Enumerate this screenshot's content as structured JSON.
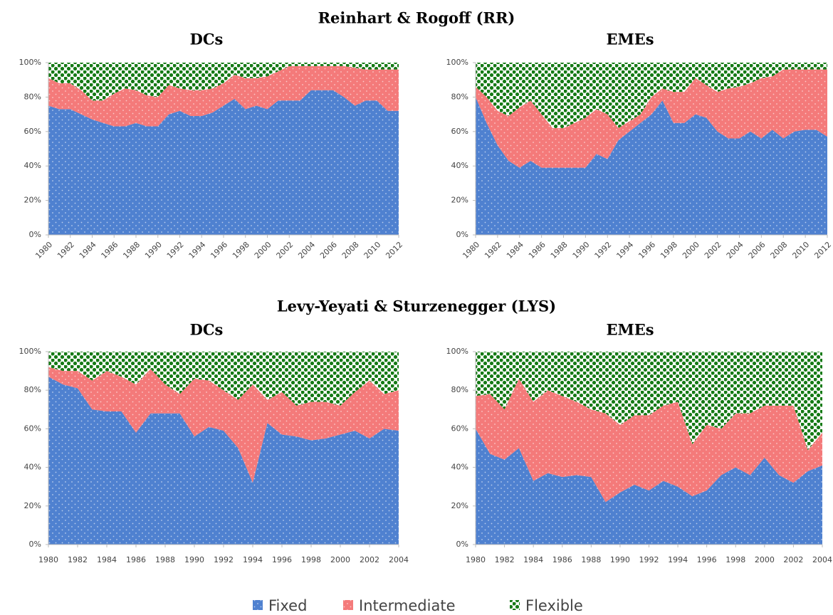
{
  "sections": [
    "Reinhart & Rogoff (RR)",
    "Levy-Yeyati & Sturzenegger (LYS)"
  ],
  "legend": [
    {
      "name": "Fixed",
      "color": "#4f81d0",
      "pattern": "light-dots"
    },
    {
      "name": "Intermediate",
      "color": "#f47a7a",
      "pattern": "light-dots"
    },
    {
      "name": "Flexible",
      "color": "#157a15",
      "pattern": "dark-dots"
    }
  ],
  "chart_data": [
    {
      "type": "area",
      "stacked": true,
      "title": "DCs",
      "x": [
        1980,
        1981,
        1982,
        1983,
        1984,
        1985,
        1986,
        1987,
        1988,
        1989,
        1990,
        1991,
        1992,
        1993,
        1994,
        1995,
        1996,
        1997,
        1998,
        1999,
        2000,
        2001,
        2002,
        2003,
        2004,
        2005,
        2006,
        2007,
        2008,
        2009,
        2010,
        2011,
        2012
      ],
      "xlim": [
        1980,
        2012
      ],
      "xticks": [
        1980,
        1982,
        1984,
        1986,
        1988,
        1990,
        1992,
        1994,
        1996,
        1998,
        2000,
        2002,
        2004,
        2006,
        2008,
        2010,
        2012
      ],
      "xlabel_rotation": 45,
      "ylim": [
        0,
        100
      ],
      "yticks": [
        {
          "value": 0,
          "label": "0%"
        },
        {
          "value": 20,
          "label": "20%"
        },
        {
          "value": 40,
          "label": "40%"
        },
        {
          "value": 60,
          "label": "60%"
        },
        {
          "value": 80,
          "label": "80%"
        },
        {
          "value": 100,
          "label": "100%"
        }
      ],
      "series": [
        {
          "values": [
            75,
            73,
            73,
            70,
            67,
            65,
            63,
            63,
            65,
            63,
            63,
            70,
            72,
            69,
            69,
            71,
            75,
            79,
            73,
            75,
            73,
            78,
            78,
            78,
            84,
            84,
            84,
            80,
            75,
            78,
            78,
            72,
            72
          ]
        },
        {
          "values": [
            16,
            15,
            15,
            14,
            11,
            13,
            19,
            22,
            19,
            18,
            17,
            17,
            13,
            15,
            15,
            14,
            13,
            14,
            18,
            16,
            19,
            17,
            20,
            20,
            14,
            14,
            14,
            18,
            22,
            18,
            18,
            24,
            24
          ]
        },
        {
          "values": [
            9,
            12,
            12,
            16,
            22,
            22,
            18,
            15,
            16,
            19,
            20,
            13,
            15,
            16,
            16,
            15,
            12,
            7,
            9,
            9,
            8,
            5,
            2,
            2,
            2,
            2,
            2,
            2,
            3,
            4,
            4,
            4,
            4
          ]
        }
      ]
    },
    {
      "type": "area",
      "stacked": true,
      "title": "EMEs",
      "x": [
        1980,
        1981,
        1982,
        1983,
        1984,
        1985,
        1986,
        1987,
        1988,
        1989,
        1990,
        1991,
        1992,
        1993,
        1994,
        1995,
        1996,
        1997,
        1998,
        1999,
        2000,
        2001,
        2002,
        2003,
        2004,
        2005,
        2006,
        2007,
        2008,
        2009,
        2010,
        2011,
        2012
      ],
      "xlim": [
        1980,
        2012
      ],
      "xticks": [
        1980,
        1982,
        1984,
        1986,
        1988,
        1990,
        1992,
        1994,
        1996,
        1998,
        2000,
        2002,
        2004,
        2006,
        2008,
        2010,
        2012
      ],
      "xlabel_rotation": 45,
      "ylim": [
        0,
        100
      ],
      "yticks": [
        {
          "value": 0,
          "label": "0%"
        },
        {
          "value": 20,
          "label": "20%"
        },
        {
          "value": 40,
          "label": "40%"
        },
        {
          "value": 60,
          "label": "60%"
        },
        {
          "value": 80,
          "label": "80%"
        },
        {
          "value": 100,
          "label": "100%"
        }
      ],
      "series": [
        {
          "values": [
            80,
            65,
            52,
            43,
            39,
            43,
            39,
            39,
            39,
            39,
            39,
            47,
            44,
            55,
            60,
            65,
            70,
            78,
            65,
            65,
            70,
            68,
            60,
            56,
            56,
            60,
            56,
            61,
            56,
            60,
            61,
            61,
            57
          ]
        },
        {
          "values": [
            6,
            15,
            20,
            26,
            35,
            35,
            31,
            23,
            23,
            26,
            29,
            26,
            26,
            7,
            6,
            5,
            10,
            7,
            18,
            18,
            21,
            19,
            23,
            29,
            30,
            28,
            35,
            31,
            40,
            36,
            35,
            35,
            39
          ]
        },
        {
          "values": [
            14,
            20,
            28,
            31,
            26,
            22,
            30,
            38,
            38,
            35,
            32,
            27,
            30,
            38,
            34,
            30,
            20,
            15,
            17,
            17,
            9,
            13,
            17,
            15,
            14,
            12,
            9,
            8,
            4,
            4,
            4,
            4,
            4
          ]
        }
      ]
    },
    {
      "type": "area",
      "stacked": true,
      "title": "DCs",
      "x": [
        1980,
        1981,
        1982,
        1983,
        1984,
        1985,
        1986,
        1987,
        1988,
        1989,
        1990,
        1991,
        1992,
        1993,
        1994,
        1995,
        1996,
        1997,
        1998,
        1999,
        2000,
        2001,
        2002,
        2003,
        2004
      ],
      "xlim": [
        1980,
        2004
      ],
      "xticks": [
        1980,
        1982,
        1984,
        1986,
        1988,
        1990,
        1992,
        1994,
        1996,
        1998,
        2000,
        2002,
        2004
      ],
      "xlabel_rotation": 0,
      "ylim": [
        0,
        100
      ],
      "yticks": [
        {
          "value": 0,
          "label": "0%"
        },
        {
          "value": 20,
          "label": "20%"
        },
        {
          "value": 40,
          "label": "40%"
        },
        {
          "value": 60,
          "label": "60%"
        },
        {
          "value": 80,
          "label": "80%"
        },
        {
          "value": 100,
          "label": "100%"
        }
      ],
      "series": [
        {
          "values": [
            87,
            83,
            81,
            70,
            69,
            69,
            58,
            68,
            68,
            68,
            56,
            61,
            59,
            50,
            32,
            63,
            57,
            56,
            54,
            55,
            57,
            59,
            55,
            60,
            59
          ]
        },
        {
          "values": [
            5,
            7,
            9,
            15,
            21,
            18,
            25,
            23,
            15,
            10,
            30,
            24,
            21,
            25,
            51,
            12,
            22,
            16,
            20,
            19,
            15,
            20,
            30,
            18,
            21
          ]
        },
        {
          "values": [
            8,
            10,
            10,
            15,
            10,
            13,
            17,
            9,
            17,
            22,
            14,
            15,
            20,
            25,
            17,
            25,
            21,
            28,
            26,
            26,
            28,
            21,
            15,
            22,
            20
          ]
        }
      ]
    },
    {
      "type": "area",
      "stacked": true,
      "title": "EMEs",
      "x": [
        1980,
        1981,
        1982,
        1983,
        1984,
        1985,
        1986,
        1987,
        1988,
        1989,
        1990,
        1991,
        1992,
        1993,
        1994,
        1995,
        1996,
        1997,
        1998,
        1999,
        2000,
        2001,
        2002,
        2003,
        2004
      ],
      "xlim": [
        1980,
        2004
      ],
      "xticks": [
        1980,
        1982,
        1984,
        1986,
        1988,
        1990,
        1992,
        1994,
        1996,
        1998,
        2000,
        2002,
        2004
      ],
      "xlabel_rotation": 0,
      "ylim": [
        0,
        100
      ],
      "yticks": [
        {
          "value": 0,
          "label": "0%"
        },
        {
          "value": 20,
          "label": "20%"
        },
        {
          "value": 40,
          "label": "40%"
        },
        {
          "value": 60,
          "label": "60%"
        },
        {
          "value": 80,
          "label": "80%"
        },
        {
          "value": 100,
          "label": "100%"
        }
      ],
      "series": [
        {
          "values": [
            60,
            47,
            44,
            50,
            33,
            37,
            35,
            36,
            35,
            22,
            27,
            31,
            28,
            33,
            30,
            25,
            28,
            36,
            40,
            36,
            45,
            36,
            32,
            38,
            41
          ]
        },
        {
          "values": [
            17,
            31,
            26,
            36,
            41,
            43,
            42,
            38,
            35,
            46,
            35,
            36,
            39,
            39,
            44,
            27,
            34,
            24,
            28,
            32,
            27,
            36,
            40,
            11,
            17
          ]
        },
        {
          "values": [
            23,
            22,
            30,
            14,
            26,
            20,
            23,
            26,
            30,
            32,
            38,
            33,
            33,
            28,
            26,
            48,
            38,
            40,
            32,
            32,
            28,
            28,
            28,
            51,
            42
          ]
        }
      ]
    }
  ]
}
